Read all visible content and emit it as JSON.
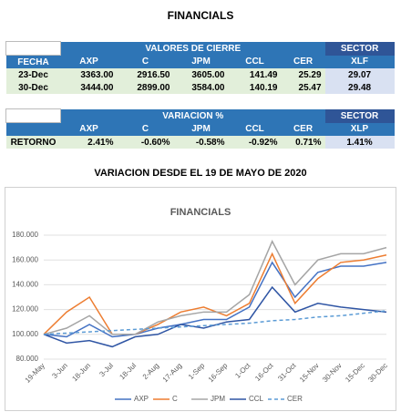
{
  "title": "FINANCIALS",
  "table1": {
    "group_header": "VALORES DE CIERRE",
    "sector_header": "SECTOR",
    "columns": [
      "FECHA",
      "AXP",
      "C",
      "JPM",
      "CCL",
      "CER",
      "XLF"
    ],
    "rows": [
      [
        "23-Dec",
        "3363.00",
        "2916.50",
        "3605.00",
        "141.49",
        "25.29",
        "29.07"
      ],
      [
        "30-Dec",
        "3444.00",
        "2899.00",
        "3584.00",
        "140.19",
        "25.47",
        "29.48"
      ]
    ]
  },
  "table2": {
    "group_header": "VARIACION %",
    "sector_header": "SECTOR",
    "columns": [
      "AXP",
      "C",
      "JPM",
      "CCL",
      "CER",
      "XLP"
    ],
    "rows": [
      [
        "RETORNO",
        "2.41%",
        "-0.60%",
        "-0.58%",
        "-0.92%",
        "0.71%",
        "1.41%"
      ]
    ]
  },
  "subtitle": "VARIACION DESDE EL 19 DE MAYO DE 2020",
  "chart_data": {
    "type": "line",
    "title": "FINANCIALS",
    "categories": [
      "19-May",
      "3-Jun",
      "18-Jun",
      "3-Jul",
      "18-Jul",
      "2-Aug",
      "17-Aug",
      "1-Sep",
      "16-Sep",
      "1-Oct",
      "16-Oct",
      "31-Oct",
      "15-Nov",
      "30-Nov",
      "15-Dec",
      "30-Dec"
    ],
    "series": [
      {
        "name": "AXP",
        "color": "#4472c4",
        "values": [
          100,
          98,
          108,
          98,
          100,
          105,
          108,
          112,
          112,
          122,
          158,
          130,
          150,
          155,
          155,
          158
        ]
      },
      {
        "name": "C",
        "color": "#ed7d31",
        "values": [
          100,
          118,
          130,
          100,
          100,
          108,
          118,
          122,
          115,
          125,
          165,
          125,
          145,
          158,
          160,
          164
        ]
      },
      {
        "name": "JPM",
        "color": "#a5a5a5",
        "values": [
          100,
          105,
          115,
          100,
          100,
          110,
          115,
          118,
          118,
          132,
          175,
          140,
          160,
          165,
          165,
          170
        ]
      },
      {
        "name": "CCL",
        "color": "#2f55a4",
        "values": [
          100,
          93,
          95,
          90,
          98,
          100,
          108,
          105,
          110,
          112,
          138,
          118,
          125,
          122,
          120,
          118
        ]
      },
      {
        "name": "CER",
        "color": "#5b9bd5",
        "dashed": true,
        "values": [
          100,
          101,
          102,
          103,
          104,
          105,
          106,
          107,
          108,
          109,
          111,
          112,
          114,
          115,
          117,
          119
        ]
      }
    ],
    "ylim": [
      80,
      180
    ],
    "yticks": [
      {
        "value": 80,
        "label": "80.000"
      },
      {
        "value": 100,
        "label": "100.000"
      },
      {
        "value": 120,
        "label": "120.000"
      },
      {
        "value": 140,
        "label": "140.000"
      },
      {
        "value": 160,
        "label": "160.000"
      },
      {
        "value": 180,
        "label": "180.000"
      }
    ],
    "grid": true
  }
}
